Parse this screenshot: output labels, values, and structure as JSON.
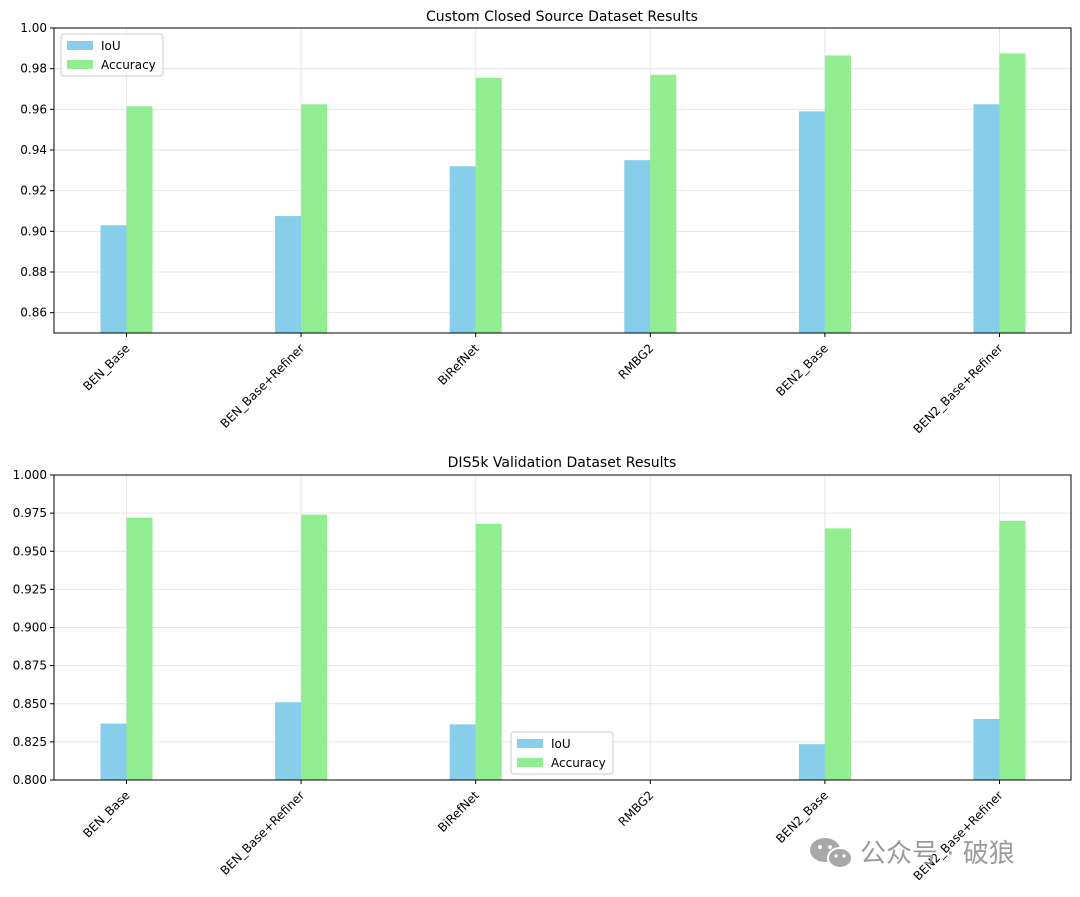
{
  "chart_data": [
    {
      "type": "bar",
      "title": "Custom Closed Source Dataset Results",
      "categories": [
        "BEN_Base",
        "BEN_Base+Refiner",
        "BiRefNet",
        "RMBG2",
        "BEN2_Base",
        "BEN2_Base+Refiner"
      ],
      "series": [
        {
          "name": "IoU",
          "color": "#87ceeb",
          "values": [
            0.903,
            0.9075,
            0.932,
            0.935,
            0.959,
            0.9625
          ]
        },
        {
          "name": "Accuracy",
          "color": "#90ee90",
          "values": [
            0.9615,
            0.9625,
            0.9755,
            0.977,
            0.9865,
            0.9875
          ]
        }
      ],
      "ylim": [
        0.85,
        1.0
      ],
      "yticks": [
        "0.86",
        "0.88",
        "0.90",
        "0.92",
        "0.94",
        "0.96",
        "0.98",
        "1.00"
      ],
      "grid": true,
      "legend": "top-left"
    },
    {
      "type": "bar",
      "title": "DIS5k Validation Dataset Results",
      "categories": [
        "BEN_Base",
        "BEN_Base+Refiner",
        "BiRefNet",
        "RMBG2",
        "BEN2_Base",
        "BEN2_Base+Refiner"
      ],
      "series": [
        {
          "name": "IoU",
          "color": "#87ceeb",
          "values": [
            0.837,
            0.851,
            0.8365,
            null,
            0.8235,
            0.84
          ]
        },
        {
          "name": "Accuracy",
          "color": "#90ee90",
          "values": [
            0.972,
            0.974,
            0.968,
            null,
            0.965,
            0.97
          ]
        }
      ],
      "ylim": [
        0.8,
        1.0
      ],
      "yticks": [
        "0.800",
        "0.825",
        "0.850",
        "0.875",
        "0.900",
        "0.925",
        "0.950",
        "0.975",
        "1.000"
      ],
      "grid": true,
      "legend": "lower-center"
    }
  ],
  "watermark": {
    "text": "公众号 · 破狼",
    "icon": "wechat-icon",
    "color": "#9a9a9a"
  }
}
